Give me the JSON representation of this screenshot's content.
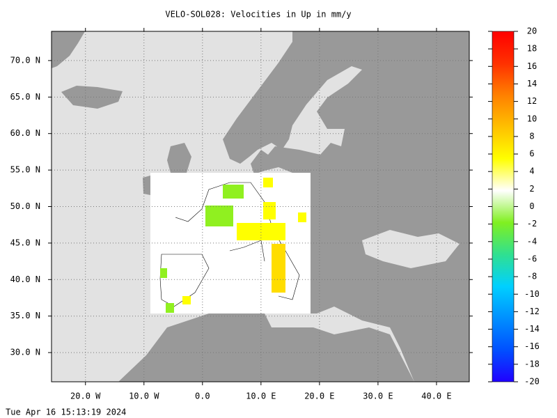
{
  "chart_data": {
    "type": "map",
    "title": "VELO-SOL028: Velocities in Up in mm/y",
    "xlim": [
      -25.8,
      45.6
    ],
    "ylim": [
      26,
      74
    ],
    "xticks": [
      {
        "value": -20,
        "label": "20.0 W"
      },
      {
        "value": -10,
        "label": "10.0 W"
      },
      {
        "value": 0,
        "label": "0.0"
      },
      {
        "value": 10,
        "label": "10.0 E"
      },
      {
        "value": 20,
        "label": "20.0 E"
      },
      {
        "value": 30,
        "label": "30.0 E"
      },
      {
        "value": 40,
        "label": "40.0 E"
      }
    ],
    "yticks": [
      {
        "value": 30,
        "label": "30.0 N"
      },
      {
        "value": 35,
        "label": "35.0 N"
      },
      {
        "value": 40,
        "label": "40.0 N"
      },
      {
        "value": 45,
        "label": "45.0 N"
      },
      {
        "value": 50,
        "label": "50.0 N"
      },
      {
        "value": 55,
        "label": "55.0 N"
      },
      {
        "value": 60,
        "label": "60.0 N"
      },
      {
        "value": 65,
        "label": "65.0 N"
      },
      {
        "value": 70,
        "label": "70.0 N"
      }
    ],
    "grid": true,
    "colorbar": {
      "range": [
        -20,
        20
      ],
      "ticks": [
        -20,
        -18,
        -16,
        -14,
        -12,
        -10,
        -8,
        -6,
        -4,
        -2,
        0,
        2,
        4,
        6,
        8,
        10,
        12,
        14,
        16,
        18,
        20
      ],
      "colors": [
        "#2000ff",
        "#0050ff",
        "#0090ff",
        "#00d0ff",
        "#30e090",
        "#80f020",
        "#ffffff",
        "#ffff00",
        "#ffc000",
        "#ff8000",
        "#ff3000",
        "#ff0000"
      ]
    },
    "timestamp": "Tue Apr 16 15:13:19 2024"
  }
}
